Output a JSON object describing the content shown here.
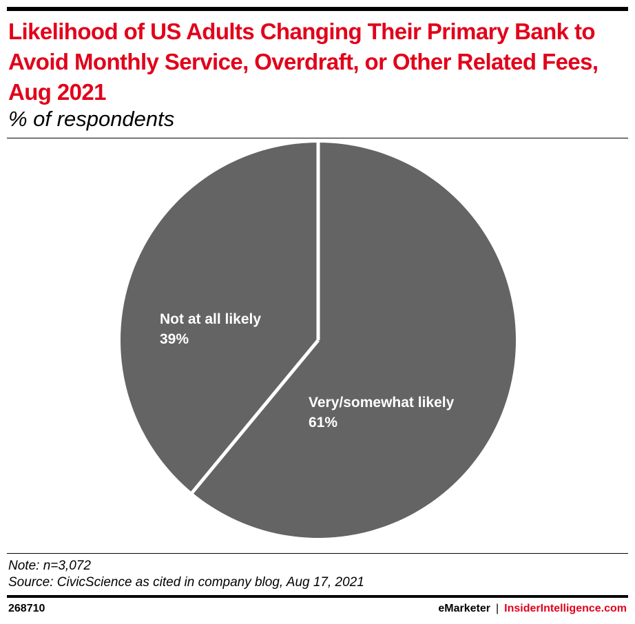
{
  "header": {
    "title": "Likelihood of US Adults Changing Their Primary Bank to Avoid Monthly Service, Overdraft, or Other Related Fees, Aug 2021",
    "subtitle": "% of respondents"
  },
  "chart_data": {
    "type": "pie",
    "title": "Likelihood of US Adults Changing Their Primary Bank to Avoid Monthly Service, Overdraft, or Other Related Fees, Aug 2021",
    "subtitle": "% of respondents",
    "slices": [
      {
        "label": "Very/somewhat likely",
        "value": 61,
        "value_label": "61%"
      },
      {
        "label": "Not at all likely",
        "value": 39,
        "value_label": "39%"
      }
    ],
    "start": "12 o'clock, clockwise",
    "colors": {
      "slice_fill": "#646464",
      "separator": "#ffffff"
    },
    "legend": "none (labels on slices)"
  },
  "footer": {
    "note": "Note: n=3,072",
    "source": "Source: CivicScience as cited in company blog, Aug 17, 2021",
    "chart_id": "268710",
    "brand_left": "eMarketer",
    "brand_sep": "|",
    "brand_right": "InsiderIntelligence.com"
  },
  "colors": {
    "title": "#e2001a",
    "brand_accent": "#e2001a",
    "text": "#000000"
  }
}
